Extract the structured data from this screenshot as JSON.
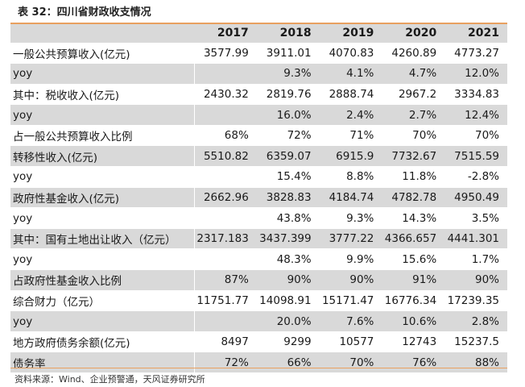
{
  "title": "表 32：四川省财政收支情况",
  "header": {
    "label": "",
    "years": [
      "2017",
      "2018",
      "2019",
      "2020",
      "2021"
    ]
  },
  "rows": [
    {
      "label": "一般公共预算收入(亿元)",
      "values": [
        "3577.99",
        "3911.01",
        "4070.83",
        "4260.89",
        "4773.27"
      ],
      "shaded": false
    },
    {
      "label": "yoy",
      "values": [
        "",
        "9.3%",
        "4.1%",
        "4.7%",
        "12.0%"
      ],
      "shaded": true
    },
    {
      "label": "其中：税收收入(亿元)",
      "values": [
        "2430.32",
        "2819.76",
        "2888.74",
        "2967.2",
        "3334.83"
      ],
      "shaded": false
    },
    {
      "label": "yoy",
      "values": [
        "",
        "16.0%",
        "2.4%",
        "2.7%",
        "12.4%"
      ],
      "shaded": true
    },
    {
      "label": "占一般公共预算收入比例",
      "values": [
        "68%",
        "72%",
        "71%",
        "70%",
        "70%"
      ],
      "shaded": false
    },
    {
      "label": "转移性收入(亿元)",
      "values": [
        "5510.82",
        "6359.07",
        "6915.9",
        "7732.67",
        "7515.59"
      ],
      "shaded": true
    },
    {
      "label": "yoy",
      "values": [
        "",
        "15.4%",
        "8.8%",
        "11.8%",
        "-2.8%"
      ],
      "shaded": false
    },
    {
      "label": "政府性基金收入(亿元)",
      "values": [
        "2662.96",
        "3828.83",
        "4184.74",
        "4782.78",
        "4950.49"
      ],
      "shaded": true
    },
    {
      "label": "yoy",
      "values": [
        "",
        "43.8%",
        "9.3%",
        "14.3%",
        "3.5%"
      ],
      "shaded": false
    },
    {
      "label": "其中：国有土地出让收入（亿元）",
      "values": [
        "2317.183",
        "3437.399",
        "3777.22",
        "4366.657",
        "4441.301"
      ],
      "shaded": true
    },
    {
      "label": "yoy",
      "values": [
        "",
        "48.3%",
        "9.9%",
        "15.6%",
        "1.7%"
      ],
      "shaded": false
    },
    {
      "label": "占政府性基金收入比例",
      "values": [
        "87%",
        "90%",
        "90%",
        "91%",
        "90%"
      ],
      "shaded": true
    },
    {
      "label": "综合财力（亿元）",
      "values": [
        "11751.77",
        "14098.91",
        "15171.47",
        "16776.34",
        "17239.35"
      ],
      "shaded": false
    },
    {
      "label": "yoy",
      "values": [
        "",
        "20.0%",
        "7.6%",
        "10.6%",
        "2.8%"
      ],
      "shaded": true
    },
    {
      "label": "地方政府债务余额(亿元)",
      "values": [
        "8497",
        "9299",
        "10577",
        "12743",
        "15237.5"
      ],
      "shaded": false
    },
    {
      "label": "债务率",
      "values": [
        "72%",
        "66%",
        "70%",
        "76%",
        "88%"
      ],
      "shaded": true
    }
  ],
  "source": "资料来源：Wind、企业预警通，天风证券研究所"
}
